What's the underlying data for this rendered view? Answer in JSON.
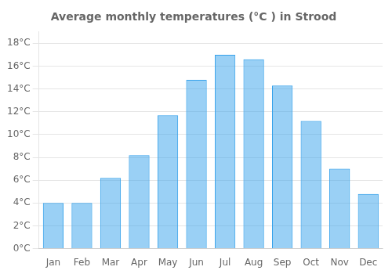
{
  "chart_data": {
    "type": "bar",
    "title": "Average monthly temperatures (°C ) in Strood",
    "categories": [
      "Jan",
      "Feb",
      "Mar",
      "Apr",
      "May",
      "Jun",
      "Jul",
      "Aug",
      "Sep",
      "Oct",
      "Nov",
      "Dec"
    ],
    "values": [
      4.0,
      4.0,
      6.2,
      8.2,
      11.7,
      14.8,
      17.0,
      16.6,
      14.3,
      11.2,
      7.0,
      4.8
    ],
    "ylim": [
      0,
      19
    ],
    "yticks": [
      {
        "value": 0,
        "label": "0°C"
      },
      {
        "value": 2,
        "label": "2°C"
      },
      {
        "value": 4,
        "label": "4°C"
      },
      {
        "value": 6,
        "label": "6°C"
      },
      {
        "value": 8,
        "label": "8°C"
      },
      {
        "value": 10,
        "label": "10°C"
      },
      {
        "value": 12,
        "label": "12°C"
      },
      {
        "value": 14,
        "label": "14°C"
      },
      {
        "value": 16,
        "label": "16°C"
      },
      {
        "value": 18,
        "label": "18°C"
      }
    ],
    "grid": true
  }
}
